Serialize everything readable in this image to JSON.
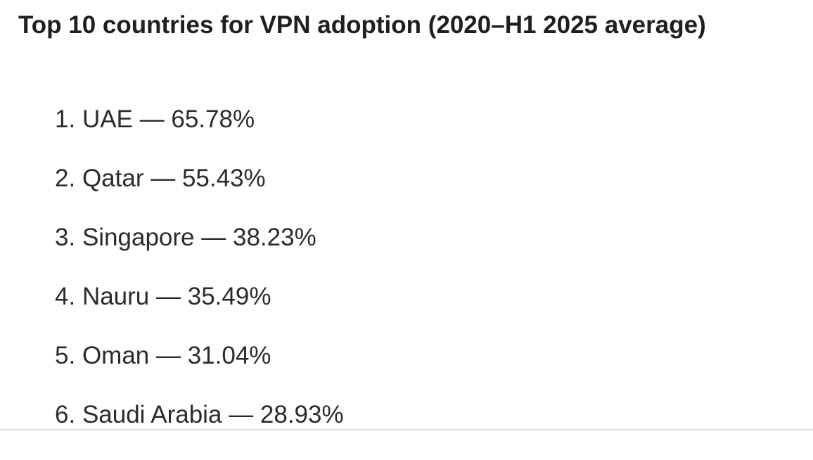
{
  "title": "Top 10 countries for VPN adoption (2020–H1 2025 average)",
  "separator": "—",
  "rankings": [
    {
      "rank": "1.",
      "country": "UAE",
      "value": "65.78%"
    },
    {
      "rank": "2.",
      "country": "Qatar",
      "value": "55.43%"
    },
    {
      "rank": "3.",
      "country": "Singapore",
      "value": "38.23%"
    },
    {
      "rank": "4.",
      "country": "Nauru",
      "value": "35.49%"
    },
    {
      "rank": "5.",
      "country": "Oman",
      "value": "31.04%"
    },
    {
      "rank": "6.",
      "country": "Saudi Arabia",
      "value": "28.93%"
    }
  ]
}
